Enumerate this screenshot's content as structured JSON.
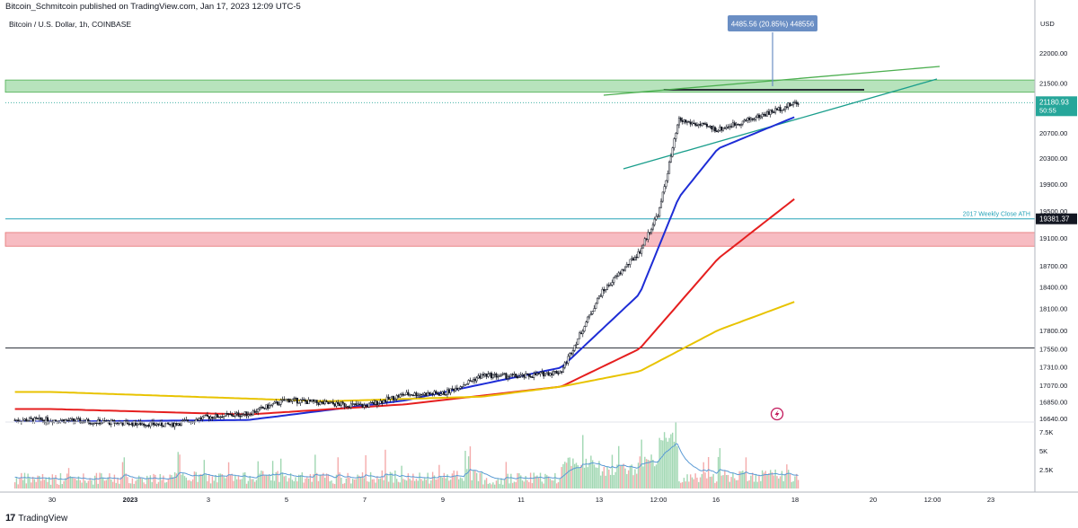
{
  "header": {
    "publish_line": "Bitcoin_Schmitcoin published on TradingView.com, Jan 17, 2023 12:09 UTC-5",
    "symbol_line": "Bitcoin / U.S. Dollar, 1h, COINBASE"
  },
  "footer": {
    "brand": "TradingView",
    "brand_icon": "tradingview-logo-icon"
  },
  "colors": {
    "up": "#131722",
    "down": "#131722",
    "ema_blue": "#1e2dd6",
    "ema_red": "#e51f1f",
    "ema_yellow": "#e8c300",
    "support_zone": "#f4a6ad",
    "resistance_zone": "#9fd9a6",
    "cyan_line": "#26a3b8",
    "wedge_green": "#4caf50",
    "wedge_teal": "#1a9e8c",
    "callout": "#6a8ec4",
    "price_tag": "#26a69a"
  },
  "chart_data": {
    "type": "candlestick",
    "title": "Bitcoin / U.S. Dollar, 1h, COINBASE",
    "y_scale": "log",
    "ylim": [
      16440,
      22400
    ],
    "y_axis_unit": "USD",
    "y_ticks": [
      "22000.00",
      "21500.00",
      "21180.93",
      "20700.00",
      "20300.00",
      "19900.00",
      "19500.00",
      "19381.37",
      "19100.00",
      "18700.00",
      "18400.00",
      "18100.00",
      "17800.00",
      "17550.00",
      "17310.00",
      "17070.00",
      "16850.00",
      "16640.00"
    ],
    "x_ticks": [
      "30",
      "2023",
      "3",
      "5",
      "7",
      "9",
      "11",
      "13",
      "12:00",
      "16",
      "18",
      "20",
      "12:00",
      "23"
    ],
    "countdown": "50:55",
    "last_price": 21180.93,
    "price_path_anchors": [
      [
        "Dec 30",
        16620
      ],
      [
        "Jan 1",
        16560
      ],
      [
        "Jan 2",
        16660
      ],
      [
        "Jan 3",
        16700
      ],
      [
        "Jan 4",
        16880
      ],
      [
        "Jan 5",
        16830
      ],
      [
        "Jan 6",
        16800
      ],
      [
        "Jan 7",
        16950
      ],
      [
        "Jan 8",
        16960
      ],
      [
        "Jan 9",
        17200
      ],
      [
        "Jan 10",
        17180
      ],
      [
        "Jan 11",
        17250
      ],
      [
        "Jan 12",
        18300
      ],
      [
        "Jan 13",
        18900
      ],
      [
        "Jan 13 12:00",
        19500
      ],
      [
        "Jan 14",
        20900
      ],
      [
        "Jan 15",
        20750
      ],
      [
        "Jan 16",
        20950
      ],
      [
        "Jan 17",
        21180.93
      ]
    ],
    "moving_averages": [
      {
        "color": "blue",
        "anchors": [
          [
            "Dec 30",
            16600
          ],
          [
            "Jan 3",
            16620
          ],
          [
            "Jan 7",
            16870
          ],
          [
            "Jan 11",
            17300
          ],
          [
            "Jan 13",
            18300
          ],
          [
            "Jan 14",
            19700
          ],
          [
            "Jan 15",
            20450
          ],
          [
            "Jan 17",
            20960
          ]
        ]
      },
      {
        "color": "red",
        "anchors": [
          [
            "Dec 30",
            16760
          ],
          [
            "Jan 3",
            16690
          ],
          [
            "Jan 7",
            16820
          ],
          [
            "Jan 11",
            17050
          ],
          [
            "Jan 13",
            17550
          ],
          [
            "Jan 15",
            18800
          ],
          [
            "Jan 17",
            19700
          ]
        ]
      },
      {
        "color": "yellow",
        "anchors": [
          [
            "Dec 30",
            16980
          ],
          [
            "Jan 5",
            16860
          ],
          [
            "Jan 9",
            16920
          ],
          [
            "Jan 11",
            17050
          ],
          [
            "Jan 13",
            17250
          ],
          [
            "Jan 15",
            17800
          ],
          [
            "Jan 17",
            18200
          ]
        ]
      }
    ],
    "zones": [
      {
        "name": "resistance",
        "from": 21350,
        "to": 21550,
        "color": "green"
      },
      {
        "name": "support",
        "from": 18980,
        "to": 19180,
        "color": "red"
      }
    ],
    "horizontal_lines": [
      {
        "value": 19381.37,
        "label": "2017 Weekly Close ATH",
        "color": "cyan"
      },
      {
        "value": 17560,
        "label": "",
        "color": "black"
      },
      {
        "value": 21390,
        "label": "",
        "color": "black"
      }
    ],
    "callout": "4485.56 (20.85%) 448556",
    "volume_ticks": [
      "7.5K",
      "5K",
      "2.5K"
    ],
    "grid": false
  }
}
